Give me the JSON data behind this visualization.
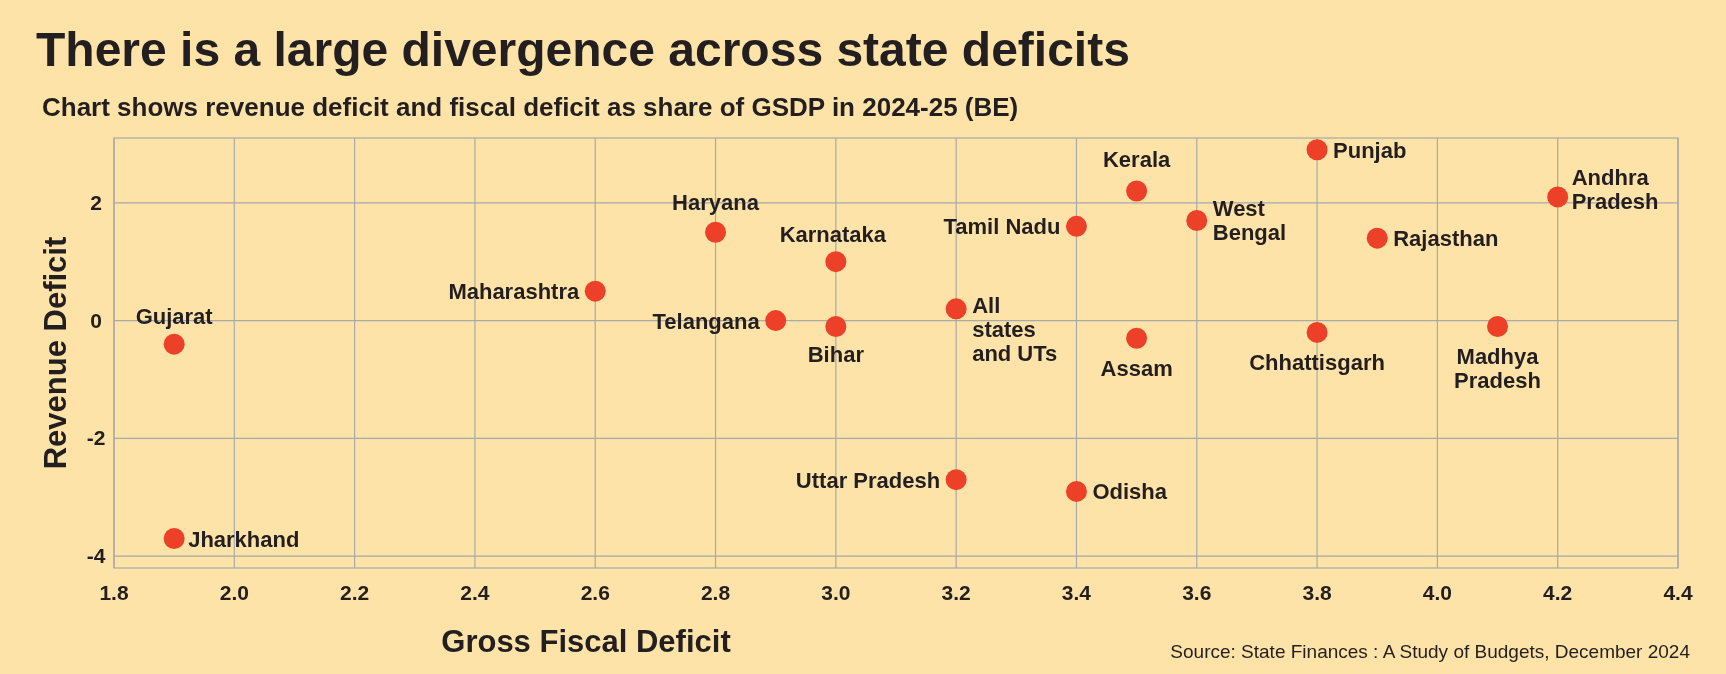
{
  "chart_data": {
    "type": "scatter",
    "title": "There is a large divergence across state deficits",
    "subtitle": "Chart shows revenue deficit and fiscal deficit as share of GSDP in 2024-25 (BE)",
    "xlabel": "Gross Fiscal Deficit",
    "ylabel": "Revenue Deficit",
    "x": [
      1.9,
      1.9,
      2.6,
      2.8,
      2.9,
      3.0,
      3.0,
      3.2,
      3.2,
      3.4,
      3.4,
      3.5,
      3.5,
      3.6,
      3.8,
      3.8,
      3.9,
      4.1,
      4.2
    ],
    "values": [
      -0.4,
      -3.7,
      0.5,
      1.5,
      0,
      1.0,
      -0.1,
      0.2,
      -2.7,
      1.6,
      -2.9,
      -0.3,
      2.2,
      1.7,
      2.9,
      -0.2,
      1.4,
      -0.1,
      2.1
    ],
    "color": "#ec4128",
    "marker": "circle",
    "xlim": [
      1.8,
      4.4
    ],
    "xticks": [
      {
        "value": 1.8,
        "label": "1.8"
      },
      {
        "value": 2.0,
        "label": "2.0"
      },
      {
        "value": 2.2,
        "label": "2.2"
      },
      {
        "value": 2.4,
        "label": "2.4"
      },
      {
        "value": 2.6,
        "label": "2.6"
      },
      {
        "value": 2.8,
        "label": "2.8"
      },
      {
        "value": 3.0,
        "label": "3.0"
      },
      {
        "value": 3.2,
        "label": "3.2"
      },
      {
        "value": 3.4,
        "label": "3.4"
      },
      {
        "value": 3.6,
        "label": "3.6"
      },
      {
        "value": 3.8,
        "label": "3.8"
      },
      {
        "value": 4.0,
        "label": "4.0"
      },
      {
        "value": 4.2,
        "label": "4.2"
      },
      {
        "value": 4.4,
        "label": "4.4"
      }
    ],
    "ylim": [
      -4.2,
      3.1
    ],
    "yticks": [
      -4,
      -2,
      0,
      2
    ],
    "grid": true,
    "annotations": [
      {
        "text": "Gujarat",
        "x": 1.9,
        "y": -0.4
      },
      {
        "text": "Jharkhand",
        "x": 1.9,
        "y": -3.7
      },
      {
        "text": "Maharashtra",
        "x": 2.6,
        "y": 0.5
      },
      {
        "text": "Haryana",
        "x": 2.8,
        "y": 1.5
      },
      {
        "text": "Telangana",
        "x": 2.9,
        "y": 0
      },
      {
        "text": "Karnataka",
        "x": 3.0,
        "y": 1.0
      },
      {
        "text": "Bihar",
        "x": 3.0,
        "y": -0.1
      },
      {
        "text": "All\nstates\nand UTs",
        "x": 3.2,
        "y": 0.2
      },
      {
        "text": "Uttar Pradesh",
        "x": 3.2,
        "y": -2.7
      },
      {
        "text": "Tamil Nadu",
        "x": 3.4,
        "y": 1.6
      },
      {
        "text": "Odisha",
        "x": 3.4,
        "y": -2.9
      },
      {
        "text": "Assam",
        "x": 3.5,
        "y": -0.3
      },
      {
        "text": "Kerala",
        "x": 3.5,
        "y": 2.2
      },
      {
        "text": "West\nBengal",
        "x": 3.6,
        "y": 1.7
      },
      {
        "text": "Punjab",
        "x": 3.8,
        "y": 2.9
      },
      {
        "text": "Chhattisgarh",
        "x": 3.8,
        "y": -0.2
      },
      {
        "text": "Rajasthan",
        "x": 3.9,
        "y": 1.4
      },
      {
        "text": "Madhya\nPradesh",
        "x": 4.1,
        "y": -0.1
      },
      {
        "text": "Andhra\nPradesh",
        "x": 4.2,
        "y": 2.1
      },
      "Source: State Finances : A Study of Budgets, December 2024"
    ]
  }
}
